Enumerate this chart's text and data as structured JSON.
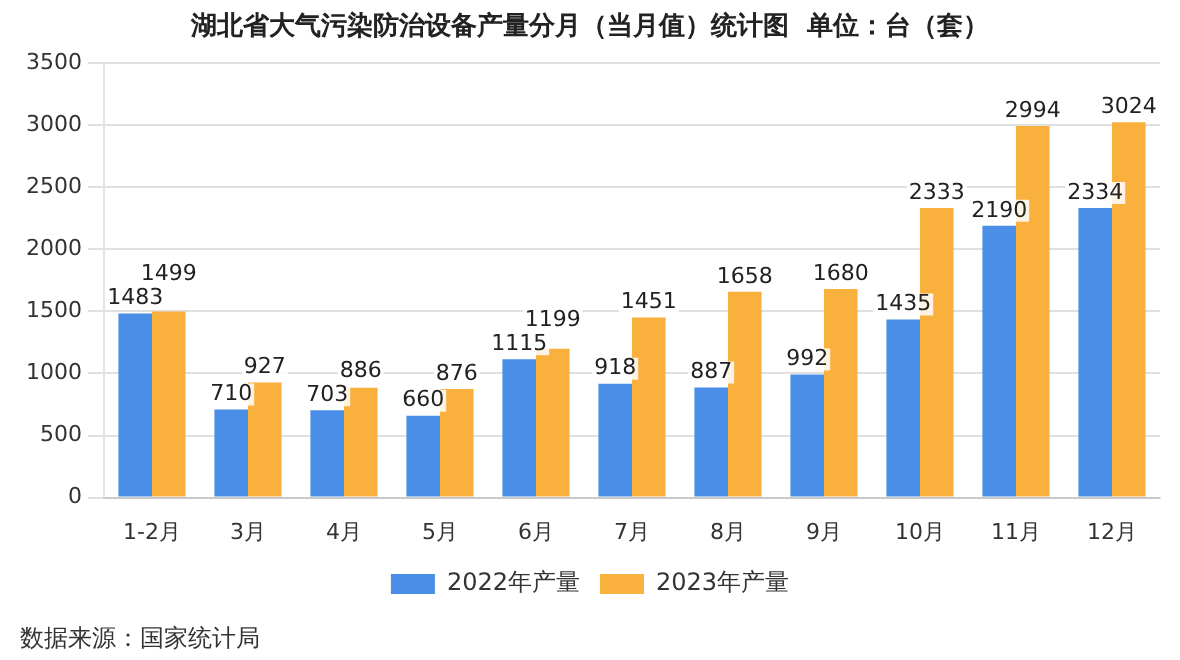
{
  "chart_data": {
    "type": "bar",
    "title": "湖北省大气污染防治设备产量分月（当月值）统计图  单位：台（套）",
    "categories": [
      "1-2月",
      "3月",
      "4月",
      "5月",
      "6月",
      "7月",
      "8月",
      "9月",
      "10月",
      "11月",
      "12月"
    ],
    "series": [
      {
        "name": "2022年产量",
        "color": "#4a8ee8",
        "values": [
          1483,
          710,
          703,
          660,
          1115,
          918,
          887,
          992,
          1435,
          2190,
          2334
        ]
      },
      {
        "name": "2023年产量",
        "color": "#f9b03d",
        "values": [
          1499,
          927,
          886,
          876,
          1199,
          1451,
          1658,
          1680,
          2333,
          2994,
          3024
        ]
      }
    ],
    "ylim": [
      0,
      3500
    ],
    "yticks": [
      0,
      500,
      1000,
      1500,
      2000,
      2500,
      3000,
      3500
    ],
    "grid": "y",
    "legend": "bottom",
    "data_labels": true,
    "annotations": [
      "数据来源：国家统计局"
    ]
  }
}
